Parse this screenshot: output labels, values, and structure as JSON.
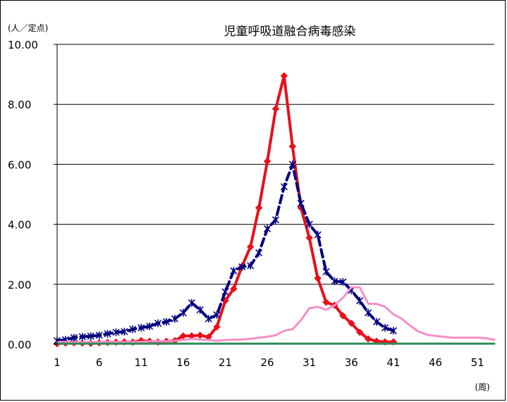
{
  "chart_data": {
    "type": "line",
    "title": "児童呼吸道融合病毒感染",
    "ylabel": "(人／定点)",
    "xlabel": "(周)",
    "ylim": [
      0,
      10
    ],
    "xlim": [
      1,
      53
    ],
    "y_ticks": [
      "0.00",
      "2.00",
      "4.00",
      "6.00",
      "8.00",
      "10.00"
    ],
    "x_ticks": [
      "1",
      "6",
      "11",
      "16",
      "21",
      "26",
      "31",
      "36",
      "41",
      "46",
      "51"
    ],
    "grid": true,
    "legend": "none",
    "series": [
      {
        "color": "#e8101a",
        "style": "solid-diamond",
        "x": [
          1,
          2,
          3,
          4,
          5,
          6,
          7,
          8,
          9,
          10,
          11,
          12,
          13,
          14,
          15,
          16,
          17,
          18,
          19,
          20,
          21,
          22,
          23,
          24,
          25,
          26,
          27,
          28,
          29,
          30,
          31,
          32,
          33,
          34,
          35,
          36,
          37,
          38,
          39,
          40,
          41
        ],
        "values": [
          0.02,
          0.04,
          0.05,
          0.04,
          0.03,
          0.05,
          0.06,
          0.07,
          0.08,
          0.07,
          0.12,
          0.1,
          0.07,
          0.1,
          0.12,
          0.28,
          0.28,
          0.3,
          0.24,
          0.58,
          1.45,
          1.85,
          2.6,
          3.25,
          4.55,
          6.1,
          7.85,
          8.95,
          6.6,
          4.55,
          3.55,
          2.2,
          1.4,
          1.3,
          0.95,
          0.7,
          0.4,
          0.18,
          0.1,
          0.08,
          0.08
        ]
      },
      {
        "color": "#000080",
        "style": "dashed-star",
        "x": [
          1,
          2,
          3,
          4,
          5,
          6,
          7,
          8,
          9,
          10,
          11,
          12,
          13,
          14,
          15,
          16,
          17,
          18,
          19,
          20,
          21,
          22,
          23,
          24,
          25,
          26,
          27,
          28,
          29,
          30,
          31,
          32,
          33,
          34,
          35,
          36,
          37,
          38,
          39,
          40,
          41
        ],
        "values": [
          0.12,
          0.15,
          0.22,
          0.25,
          0.27,
          0.3,
          0.35,
          0.4,
          0.42,
          0.5,
          0.55,
          0.6,
          0.7,
          0.75,
          0.85,
          1.05,
          1.38,
          1.15,
          0.85,
          0.98,
          1.75,
          2.45,
          2.58,
          2.62,
          3.05,
          3.85,
          4.15,
          5.25,
          6.0,
          4.7,
          4.0,
          3.65,
          2.42,
          2.1,
          2.08,
          1.8,
          1.45,
          1.05,
          0.75,
          0.55,
          0.45
        ]
      },
      {
        "color": "#f58fc8",
        "style": "solid",
        "x": [
          1,
          2,
          3,
          4,
          5,
          6,
          7,
          8,
          9,
          10,
          11,
          12,
          13,
          14,
          15,
          16,
          17,
          18,
          19,
          20,
          21,
          22,
          23,
          24,
          25,
          26,
          27,
          28,
          29,
          30,
          31,
          32,
          33,
          34,
          35,
          36,
          37,
          38,
          39,
          40,
          41,
          42,
          43,
          44,
          45,
          46,
          47,
          48,
          49,
          50,
          51,
          52,
          53
        ],
        "values": [
          0.08,
          0.08,
          0.07,
          0.07,
          0.07,
          0.07,
          0.08,
          0.08,
          0.08,
          0.08,
          0.08,
          0.1,
          0.1,
          0.1,
          0.12,
          0.14,
          0.18,
          0.16,
          0.14,
          0.12,
          0.14,
          0.15,
          0.16,
          0.18,
          0.22,
          0.25,
          0.3,
          0.45,
          0.5,
          0.8,
          1.2,
          1.25,
          1.15,
          1.3,
          1.55,
          1.9,
          1.9,
          1.35,
          1.35,
          1.25,
          1.0,
          0.85,
          0.62,
          0.42,
          0.32,
          0.28,
          0.25,
          0.22,
          0.22,
          0.22,
          0.22,
          0.2,
          0.15
        ]
      },
      {
        "color": "#2e8b57",
        "style": "solid",
        "x": [
          1,
          53
        ],
        "values": [
          0.02,
          0.02
        ]
      }
    ]
  }
}
